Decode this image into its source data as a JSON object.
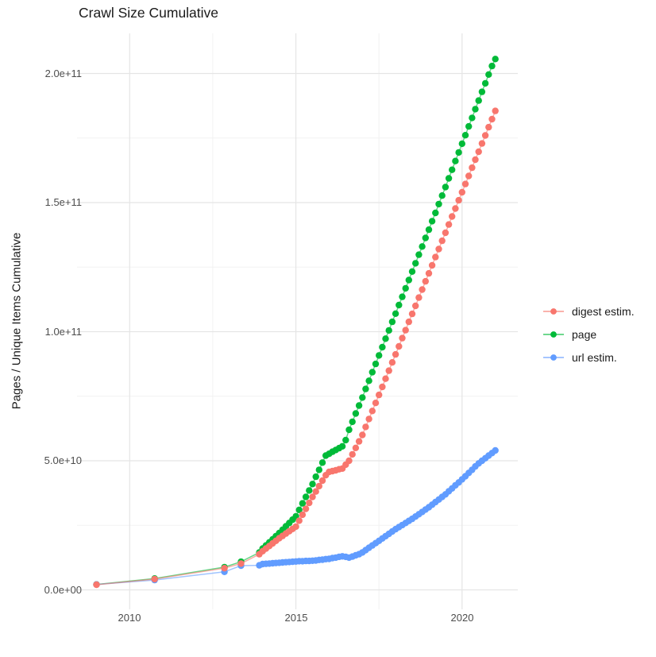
{
  "title": "Crawl Size Cumulative",
  "y_axis": {
    "label": "Pages / Unique Items Cumulative",
    "tick_labels": [
      "2.0e+11",
      "1.5e+11",
      "1.0e+11",
      "5.0e+10",
      "0.0e+00"
    ]
  },
  "x_axis": {
    "tick_labels": [
      "2010",
      "2015",
      "2020"
    ]
  },
  "legend": {
    "items": [
      {
        "label": "digest estim.",
        "color": "#F8766D"
      },
      {
        "label": "page",
        "color": "#00BA38"
      },
      {
        "label": "url estim.",
        "color": "#619CFF"
      }
    ]
  },
  "chart_data": {
    "type": "line",
    "marker": "point",
    "title": "Crawl Size Cumulative",
    "xlabel": "",
    "ylabel": "Pages / Unique Items Cumulative",
    "xlim": [
      2008.4,
      2021.6
    ],
    "ylim": [
      0,
      215000000000.0
    ],
    "x_major_gridlines": [
      2010,
      2015,
      2020
    ],
    "x_minor_gridlines": [
      2012.5,
      2017.5
    ],
    "y_major_gridlines_e10": [
      0,
      5,
      10,
      15,
      20
    ],
    "y_minor_gridlines_e10": [
      2.5,
      7.5,
      12.5,
      17.5
    ],
    "grid": "on",
    "legend_position": "right",
    "value_scale_note": "point values are in units of 1e10 pages/items; x is decimal year",
    "series": [
      {
        "name": "digest estim.",
        "color": "#F8766D",
        "points": [
          [
            2009,
            0.2
          ],
          [
            2010.75,
            0.42
          ],
          [
            2012.85,
            0.84
          ],
          [
            2013.35,
            1.02
          ],
          [
            2013.9,
            1.38
          ],
          [
            2014,
            1.5
          ],
          [
            2014.1,
            1.6
          ],
          [
            2014.2,
            1.7
          ],
          [
            2014.3,
            1.8
          ],
          [
            2014.4,
            1.9
          ],
          [
            2014.5,
            2
          ],
          [
            2014.6,
            2.09
          ],
          [
            2014.7,
            2.18
          ],
          [
            2014.8,
            2.27
          ],
          [
            2014.9,
            2.36
          ],
          [
            2015,
            2.45
          ],
          [
            2015.1,
            2.68
          ],
          [
            2015.2,
            2.91
          ],
          [
            2015.3,
            3.14
          ],
          [
            2015.4,
            3.37
          ],
          [
            2015.5,
            3.6
          ],
          [
            2015.6,
            3.81
          ],
          [
            2015.7,
            4.02
          ],
          [
            2015.8,
            4.23
          ],
          [
            2015.9,
            4.44
          ],
          [
            2016,
            4.57
          ],
          [
            2016.1,
            4.6
          ],
          [
            2016.2,
            4.63
          ],
          [
            2016.3,
            4.67
          ],
          [
            2016.4,
            4.7
          ],
          [
            2016.5,
            4.85
          ],
          [
            2016.6,
            5
          ],
          [
            2016.7,
            5.25
          ],
          [
            2016.8,
            5.5
          ],
          [
            2016.9,
            5.75
          ],
          [
            2017,
            6
          ],
          [
            2017.1,
            6.31
          ],
          [
            2017.2,
            6.62
          ],
          [
            2017.3,
            6.93
          ],
          [
            2017.4,
            7.24
          ],
          [
            2017.5,
            7.55
          ],
          [
            2017.6,
            7.86
          ],
          [
            2017.7,
            8.18
          ],
          [
            2017.8,
            8.49
          ],
          [
            2017.9,
            8.81
          ],
          [
            2018,
            9.12
          ],
          [
            2018.1,
            9.43
          ],
          [
            2018.2,
            9.75
          ],
          [
            2018.3,
            10.06
          ],
          [
            2018.4,
            10.38
          ],
          [
            2018.5,
            10.69
          ],
          [
            2018.6,
            11
          ],
          [
            2018.7,
            11.32
          ],
          [
            2018.8,
            11.63
          ],
          [
            2018.9,
            11.95
          ],
          [
            2019,
            12.26
          ],
          [
            2019.1,
            12.57
          ],
          [
            2019.2,
            12.89
          ],
          [
            2019.3,
            13.2
          ],
          [
            2019.4,
            13.52
          ],
          [
            2019.5,
            13.83
          ],
          [
            2019.6,
            14.15
          ],
          [
            2019.7,
            14.46
          ],
          [
            2019.8,
            14.77
          ],
          [
            2019.9,
            15.09
          ],
          [
            2020,
            15.4
          ],
          [
            2020.1,
            15.72
          ],
          [
            2020.2,
            16.03
          ],
          [
            2020.3,
            16.35
          ],
          [
            2020.4,
            16.66
          ],
          [
            2020.5,
            16.97
          ],
          [
            2020.6,
            17.29
          ],
          [
            2020.7,
            17.6
          ],
          [
            2020.8,
            17.92
          ],
          [
            2020.9,
            18.23
          ],
          [
            2021,
            18.55
          ]
        ]
      },
      {
        "name": "page",
        "color": "#00BA38",
        "points": [
          [
            2009,
            0.21
          ],
          [
            2010.75,
            0.44
          ],
          [
            2012.85,
            0.88
          ],
          [
            2013.35,
            1.09
          ],
          [
            2013.9,
            1.45
          ],
          [
            2014,
            1.6
          ],
          [
            2014.1,
            1.72
          ],
          [
            2014.2,
            1.84
          ],
          [
            2014.3,
            1.96
          ],
          [
            2014.4,
            2.08
          ],
          [
            2014.5,
            2.2
          ],
          [
            2014.6,
            2.33
          ],
          [
            2014.7,
            2.46
          ],
          [
            2014.8,
            2.59
          ],
          [
            2014.9,
            2.72
          ],
          [
            2015,
            2.85
          ],
          [
            2015.1,
            3.1
          ],
          [
            2015.2,
            3.35
          ],
          [
            2015.3,
            3.6
          ],
          [
            2015.4,
            3.85
          ],
          [
            2015.5,
            4.1
          ],
          [
            2015.6,
            4.38
          ],
          [
            2015.7,
            4.65
          ],
          [
            2015.8,
            4.93
          ],
          [
            2015.9,
            5.2
          ],
          [
            2016,
            5.27
          ],
          [
            2016.1,
            5.35
          ],
          [
            2016.2,
            5.42
          ],
          [
            2016.3,
            5.49
          ],
          [
            2016.4,
            5.56
          ],
          [
            2016.5,
            5.8
          ],
          [
            2016.6,
            6.2
          ],
          [
            2016.7,
            6.51
          ],
          [
            2016.8,
            6.83
          ],
          [
            2016.9,
            7.14
          ],
          [
            2017,
            7.45
          ],
          [
            2017.1,
            7.78
          ],
          [
            2017.2,
            8.1
          ],
          [
            2017.3,
            8.43
          ],
          [
            2017.4,
            8.75
          ],
          [
            2017.5,
            9.08
          ],
          [
            2017.6,
            9.4
          ],
          [
            2017.7,
            9.73
          ],
          [
            2017.8,
            10.05
          ],
          [
            2017.9,
            10.38
          ],
          [
            2018,
            10.7
          ],
          [
            2018.1,
            11.03
          ],
          [
            2018.2,
            11.35
          ],
          [
            2018.3,
            11.68
          ],
          [
            2018.4,
            12
          ],
          [
            2018.5,
            12.33
          ],
          [
            2018.6,
            12.65
          ],
          [
            2018.7,
            12.98
          ],
          [
            2018.8,
            13.3
          ],
          [
            2018.9,
            13.63
          ],
          [
            2019,
            13.95
          ],
          [
            2019.1,
            14.28
          ],
          [
            2019.2,
            14.6
          ],
          [
            2019.3,
            14.94
          ],
          [
            2019.4,
            15.27
          ],
          [
            2019.5,
            15.6
          ],
          [
            2019.6,
            15.94
          ],
          [
            2019.7,
            16.27
          ],
          [
            2019.8,
            16.61
          ],
          [
            2019.9,
            16.94
          ],
          [
            2020,
            17.28
          ],
          [
            2020.1,
            17.61
          ],
          [
            2020.2,
            17.95
          ],
          [
            2020.3,
            18.28
          ],
          [
            2020.4,
            18.62
          ],
          [
            2020.5,
            18.95
          ],
          [
            2020.6,
            19.29
          ],
          [
            2020.7,
            19.62
          ],
          [
            2020.8,
            19.96
          ],
          [
            2020.9,
            20.29
          ],
          [
            2021,
            20.56
          ]
        ]
      },
      {
        "name": "url estim.",
        "color": "#619CFF",
        "points": [
          [
            2009,
            0.21
          ],
          [
            2010.75,
            0.38
          ],
          [
            2012.85,
            0.7
          ],
          [
            2013.35,
            0.94
          ],
          [
            2013.9,
            0.95
          ],
          [
            2014,
            1
          ],
          [
            2014.1,
            1.01
          ],
          [
            2014.2,
            1.02
          ],
          [
            2014.3,
            1.03
          ],
          [
            2014.4,
            1.04
          ],
          [
            2014.5,
            1.05
          ],
          [
            2014.6,
            1.06
          ],
          [
            2014.7,
            1.07
          ],
          [
            2014.8,
            1.08
          ],
          [
            2014.9,
            1.09
          ],
          [
            2015,
            1.1
          ],
          [
            2015.1,
            1.11
          ],
          [
            2015.2,
            1.11
          ],
          [
            2015.3,
            1.12
          ],
          [
            2015.4,
            1.12
          ],
          [
            2015.5,
            1.13
          ],
          [
            2015.6,
            1.14
          ],
          [
            2015.7,
            1.16
          ],
          [
            2015.8,
            1.17
          ],
          [
            2015.9,
            1.19
          ],
          [
            2016,
            1.2
          ],
          [
            2016.1,
            1.23
          ],
          [
            2016.2,
            1.25
          ],
          [
            2016.3,
            1.28
          ],
          [
            2016.4,
            1.3
          ],
          [
            2016.5,
            1.28
          ],
          [
            2016.6,
            1.25
          ],
          [
            2016.7,
            1.29
          ],
          [
            2016.8,
            1.34
          ],
          [
            2016.9,
            1.38
          ],
          [
            2017,
            1.45
          ],
          [
            2017.1,
            1.54
          ],
          [
            2017.2,
            1.63
          ],
          [
            2017.3,
            1.72
          ],
          [
            2017.4,
            1.81
          ],
          [
            2017.5,
            1.9
          ],
          [
            2017.6,
            1.99
          ],
          [
            2017.7,
            2.08
          ],
          [
            2017.8,
            2.17
          ],
          [
            2017.9,
            2.26
          ],
          [
            2018,
            2.35
          ],
          [
            2018.1,
            2.43
          ],
          [
            2018.2,
            2.51
          ],
          [
            2018.3,
            2.59
          ],
          [
            2018.4,
            2.67
          ],
          [
            2018.5,
            2.75
          ],
          [
            2018.6,
            2.84
          ],
          [
            2018.7,
            2.93
          ],
          [
            2018.8,
            3.02
          ],
          [
            2018.9,
            3.11
          ],
          [
            2019,
            3.2
          ],
          [
            2019.1,
            3.3
          ],
          [
            2019.2,
            3.4
          ],
          [
            2019.3,
            3.5
          ],
          [
            2019.4,
            3.6
          ],
          [
            2019.5,
            3.7
          ],
          [
            2019.6,
            3.82
          ],
          [
            2019.7,
            3.93
          ],
          [
            2019.8,
            4.05
          ],
          [
            2019.9,
            4.16
          ],
          [
            2020,
            4.28
          ],
          [
            2020.1,
            4.4
          ],
          [
            2020.2,
            4.53
          ],
          [
            2020.3,
            4.65
          ],
          [
            2020.4,
            4.78
          ],
          [
            2020.5,
            4.9
          ],
          [
            2020.6,
            5
          ],
          [
            2020.7,
            5.1
          ],
          [
            2020.8,
            5.2
          ],
          [
            2020.9,
            5.3
          ],
          [
            2021,
            5.4
          ]
        ]
      }
    ]
  }
}
